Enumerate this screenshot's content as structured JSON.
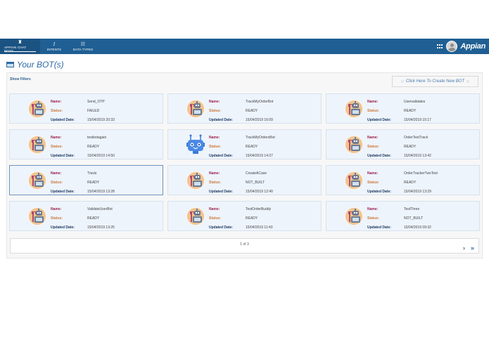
{
  "nav": {
    "items": [
      {
        "label": "APPIAN CHAT BOTS",
        "icon": "robot-icon",
        "glyph": "♜",
        "active": true
      },
      {
        "label": "INTENTS",
        "icon": "italic-i-icon",
        "glyph": "I",
        "active": false
      },
      {
        "label": "DATA TYPES",
        "icon": "list-grid-icon",
        "glyph": "☷",
        "active": false
      }
    ],
    "brand": "Appian"
  },
  "page": {
    "title": "Your BOT(s)",
    "show_filters": "Show Filters",
    "create_button": "Click Here To Create New BOT",
    "create_icon_left": "☞",
    "create_icon_right": "☜"
  },
  "labels": {
    "name": "Name:",
    "status": "Status:",
    "updated": "Updated Date:"
  },
  "bots": [
    {
      "name": "Send_OTP",
      "status": "FAILED",
      "updated": "15/04/2019 20:33",
      "avatar": "orange-bot",
      "selected": false
    },
    {
      "name": "TrackMyOrderBot",
      "status": "READY",
      "updated": "15/04/2019 16:09",
      "avatar": "orange-bot",
      "selected": false
    },
    {
      "name": "Uservalidates",
      "status": "READY",
      "updated": "15/04/2019 15:17",
      "avatar": "orange-bot",
      "selected": false
    },
    {
      "name": "testbotagain",
      "status": "READY",
      "updated": "15/04/2019 14:50",
      "avatar": "orange-bot",
      "selected": false
    },
    {
      "name": "TrackMyOrdersBot",
      "status": "READY",
      "updated": "15/04/2019 14:27",
      "avatar": "blue-bot",
      "selected": false
    },
    {
      "name": "OrderTestTrack",
      "status": "READY",
      "updated": "15/04/2019 13:42",
      "avatar": "orange-bot",
      "selected": false
    },
    {
      "name": "Travis",
      "status": "READY",
      "updated": "15/04/2019 13:28",
      "avatar": "orange-bot",
      "selected": true
    },
    {
      "name": "CreateACase",
      "status": "NOT_BUILT",
      "updated": "15/04/2019 12:40",
      "avatar": "orange-bot",
      "selected": false
    },
    {
      "name": "OrderTrackerTwoTest",
      "status": "READY",
      "updated": "15/04/2019 13:29",
      "avatar": "orange-bot",
      "selected": false
    },
    {
      "name": "ValidateUserBot",
      "status": "READY",
      "updated": "15/04/2019 13:25",
      "avatar": "orange-bot",
      "selected": false
    },
    {
      "name": "TestOrderBuddy",
      "status": "READY",
      "updated": "15/04/2019 11:43",
      "avatar": "orange-bot",
      "selected": false
    },
    {
      "name": "TestThree",
      "status": "NOT_BUILT",
      "updated": "15/04/2019 09:32",
      "avatar": "orange-bot",
      "selected": false
    }
  ],
  "pager": {
    "text": "1 of 3",
    "next": "›",
    "last": "»"
  },
  "colors": {
    "topbar": "#1f5f93",
    "accent": "#2e6aa3",
    "card_bg": "#eef4fc",
    "name_label": "#9b1e4a",
    "status_label": "#cc7a3c",
    "date_label": "#1f3b63"
  }
}
